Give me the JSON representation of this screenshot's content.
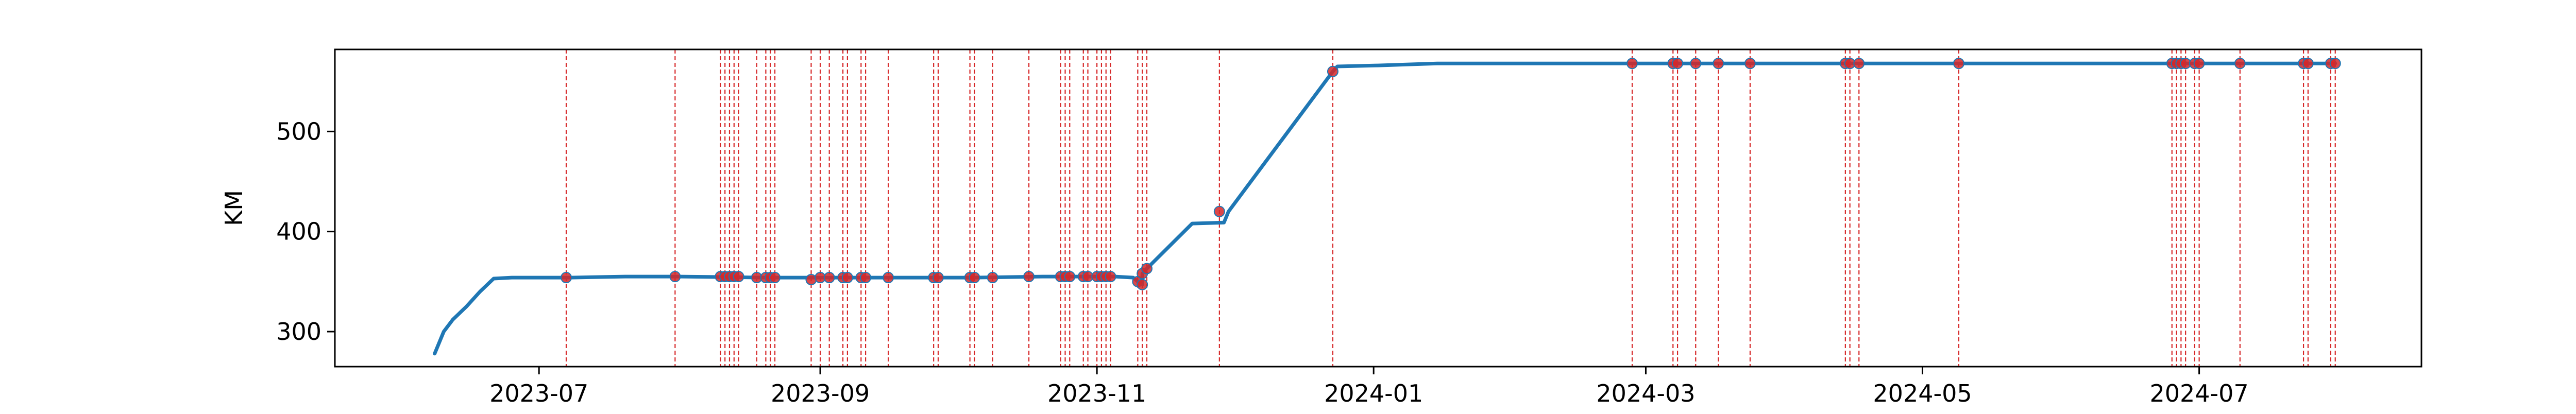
{
  "chart_data": {
    "type": "line",
    "title": "",
    "xlabel": "",
    "ylabel": "KM",
    "x_ticks": [
      "2023-07",
      "2023-09",
      "2023-11",
      "2024-01",
      "2024-03",
      "2024-05",
      "2024-07"
    ],
    "y_ticks": [
      300,
      400,
      500
    ],
    "xlim": [
      "2023-05-17",
      "2024-08-19"
    ],
    "ylim": [
      265,
      582
    ],
    "grid": false,
    "legend": "none",
    "series": [
      {
        "line_color": "#1f77b4",
        "points": [
          [
            "2023-06-08",
            278
          ],
          [
            "2023-06-10",
            300
          ],
          [
            "2023-06-12",
            312
          ],
          [
            "2023-06-15",
            325
          ],
          [
            "2023-06-18",
            340
          ],
          [
            "2023-06-21",
            353
          ],
          [
            "2023-06-25",
            354
          ],
          [
            "2023-07-08",
            354
          ],
          [
            "2023-07-20",
            355
          ],
          [
            "2023-08-01",
            355
          ],
          [
            "2023-08-20",
            354
          ],
          [
            "2023-09-05",
            354
          ],
          [
            "2023-09-20",
            354
          ],
          [
            "2023-10-05",
            354
          ],
          [
            "2023-10-20",
            355
          ],
          [
            "2023-11-05",
            355
          ],
          [
            "2023-11-09",
            354
          ],
          [
            "2023-11-10",
            350
          ],
          [
            "2023-11-11",
            347
          ],
          [
            "2023-11-11",
            358
          ],
          [
            "2023-11-12",
            363
          ],
          [
            "2023-11-18",
            390
          ],
          [
            "2023-11-22",
            408
          ],
          [
            "2023-11-29",
            409
          ],
          [
            "2023-11-30",
            420
          ],
          [
            "2023-12-23",
            560
          ],
          [
            "2023-12-24",
            565
          ],
          [
            "2024-01-02",
            566
          ],
          [
            "2024-01-15",
            568
          ],
          [
            "2024-02-01",
            568
          ],
          [
            "2024-03-01",
            568
          ],
          [
            "2024-04-01",
            568
          ],
          [
            "2024-05-01",
            568
          ],
          [
            "2024-06-01",
            568
          ],
          [
            "2024-07-01",
            568
          ],
          [
            "2024-07-31",
            568
          ]
        ]
      }
    ],
    "events": {
      "line_color": "#d62728",
      "marker_color": "#d62728",
      "points": [
        [
          "2023-07-07",
          354
        ],
        [
          "2023-07-31",
          355
        ],
        [
          "2023-08-10",
          355
        ],
        [
          "2023-08-11",
          355
        ],
        [
          "2023-08-12",
          355
        ],
        [
          "2023-08-13",
          355
        ],
        [
          "2023-08-14",
          355
        ],
        [
          "2023-08-18",
          354
        ],
        [
          "2023-08-20",
          354
        ],
        [
          "2023-08-21",
          354
        ],
        [
          "2023-08-22",
          354
        ],
        [
          "2023-08-30",
          352
        ],
        [
          "2023-09-01",
          354
        ],
        [
          "2023-09-03",
          354
        ],
        [
          "2023-09-06",
          354
        ],
        [
          "2023-09-07",
          354
        ],
        [
          "2023-09-10",
          354
        ],
        [
          "2023-09-11",
          354
        ],
        [
          "2023-09-16",
          354
        ],
        [
          "2023-09-26",
          354
        ],
        [
          "2023-09-27",
          354
        ],
        [
          "2023-10-04",
          354
        ],
        [
          "2023-10-05",
          354
        ],
        [
          "2023-10-09",
          354
        ],
        [
          "2023-10-17",
          355
        ],
        [
          "2023-10-24",
          355
        ],
        [
          "2023-10-25",
          355
        ],
        [
          "2023-10-26",
          355
        ],
        [
          "2023-10-29",
          355
        ],
        [
          "2023-10-30",
          355
        ],
        [
          "2023-11-01",
          355
        ],
        [
          "2023-11-02",
          355
        ],
        [
          "2023-11-03",
          355
        ],
        [
          "2023-11-04",
          355
        ],
        [
          "2023-11-10",
          350
        ],
        [
          "2023-11-11",
          347
        ],
        [
          "2023-11-11",
          358
        ],
        [
          "2023-11-12",
          363
        ],
        [
          "2023-11-28",
          420
        ],
        [
          "2023-12-23",
          560
        ],
        [
          "2024-02-27",
          568
        ],
        [
          "2024-03-07",
          568
        ],
        [
          "2024-03-08",
          568
        ],
        [
          "2024-03-12",
          568
        ],
        [
          "2024-03-17",
          568
        ],
        [
          "2024-03-24",
          568
        ],
        [
          "2024-04-14",
          568
        ],
        [
          "2024-04-15",
          568
        ],
        [
          "2024-04-17",
          568
        ],
        [
          "2024-05-09",
          568
        ],
        [
          "2024-06-25",
          568
        ],
        [
          "2024-06-26",
          568
        ],
        [
          "2024-06-27",
          568
        ],
        [
          "2024-06-28",
          568
        ],
        [
          "2024-06-30",
          568
        ],
        [
          "2024-07-01",
          568
        ],
        [
          "2024-07-10",
          568
        ],
        [
          "2024-07-24",
          568
        ],
        [
          "2024-07-25",
          568
        ],
        [
          "2024-07-30",
          568
        ],
        [
          "2024-07-31",
          568
        ]
      ]
    }
  }
}
